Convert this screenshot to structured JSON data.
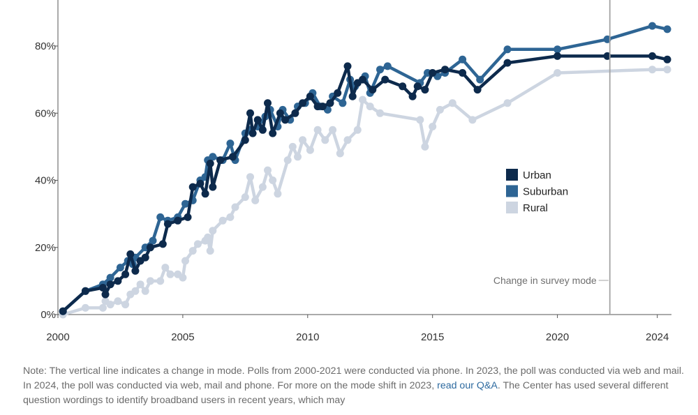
{
  "chart_data": {
    "type": "line",
    "title": "",
    "xlabel": "",
    "ylabel": "",
    "xlim": [
      2000,
      2024.4
    ],
    "ylim": [
      0,
      80
    ],
    "x_ticks": [
      2000,
      2005,
      2010,
      2015,
      2020,
      2024
    ],
    "y_ticks": [
      0,
      20,
      40,
      60,
      80
    ],
    "y_tick_labels": [
      "0%",
      "20%",
      "40%",
      "60%",
      "80%"
    ],
    "grid": false,
    "legend": "middle-right",
    "annotations": [
      {
        "text": "Change in survey mode",
        "x": 2022.1
      }
    ],
    "series": [
      {
        "name": "Urban",
        "color": "#0d2a4c",
        "points": [
          [
            2000.2,
            1
          ],
          [
            2001.1,
            7
          ],
          [
            2001.8,
            8
          ],
          [
            2001.9,
            6
          ],
          [
            2002.1,
            9
          ],
          [
            2002.4,
            10
          ],
          [
            2002.7,
            12
          ],
          [
            2002.9,
            18
          ],
          [
            2003.1,
            13
          ],
          [
            2003.3,
            16
          ],
          [
            2003.5,
            17
          ],
          [
            2003.7,
            20
          ],
          [
            2004.2,
            21
          ],
          [
            2004.4,
            27
          ],
          [
            2004.8,
            28
          ],
          [
            2005.2,
            29
          ],
          [
            2005.4,
            38
          ],
          [
            2005.7,
            39
          ],
          [
            2005.9,
            36
          ],
          [
            2006.1,
            45
          ],
          [
            2006.2,
            38
          ],
          [
            2006.5,
            46
          ],
          [
            2007.0,
            47
          ],
          [
            2007.5,
            52
          ],
          [
            2007.7,
            60
          ],
          [
            2007.8,
            54
          ],
          [
            2008.0,
            58
          ],
          [
            2008.2,
            55
          ],
          [
            2008.4,
            63
          ],
          [
            2008.6,
            54
          ],
          [
            2008.9,
            60
          ],
          [
            2009.1,
            58
          ],
          [
            2009.5,
            60
          ],
          [
            2009.8,
            63
          ],
          [
            2010.1,
            65
          ],
          [
            2010.4,
            62
          ],
          [
            2010.6,
            62
          ],
          [
            2010.9,
            63
          ],
          [
            2011.2,
            66
          ],
          [
            2011.6,
            74
          ],
          [
            2011.8,
            65
          ],
          [
            2012.0,
            69
          ],
          [
            2012.2,
            70
          ],
          [
            2012.6,
            67
          ],
          [
            2013.1,
            70
          ],
          [
            2013.8,
            68
          ],
          [
            2014.2,
            65
          ],
          [
            2014.4,
            68
          ],
          [
            2014.7,
            67
          ],
          [
            2015.0,
            72
          ],
          [
            2015.5,
            73
          ],
          [
            2016.2,
            72
          ],
          [
            2016.8,
            67
          ],
          [
            2018.0,
            75
          ],
          [
            2020.0,
            77
          ],
          [
            2022.0,
            77
          ],
          [
            2023.8,
            77
          ],
          [
            2024.4,
            76
          ]
        ]
      },
      {
        "name": "Suburban",
        "color": "#2e6594",
        "points": [
          [
            2000.2,
            1
          ],
          [
            2001.1,
            7
          ],
          [
            2001.8,
            9
          ],
          [
            2002.1,
            11
          ],
          [
            2002.5,
            14
          ],
          [
            2002.8,
            16
          ],
          [
            2003.0,
            15
          ],
          [
            2003.1,
            17
          ],
          [
            2003.5,
            20
          ],
          [
            2003.8,
            22
          ],
          [
            2004.1,
            29
          ],
          [
            2004.4,
            28
          ],
          [
            2004.8,
            29
          ],
          [
            2005.1,
            33
          ],
          [
            2005.4,
            34
          ],
          [
            2005.7,
            40
          ],
          [
            2005.9,
            41
          ],
          [
            2006.0,
            46
          ],
          [
            2006.2,
            47
          ],
          [
            2006.6,
            46
          ],
          [
            2006.9,
            51
          ],
          [
            2007.1,
            46
          ],
          [
            2007.5,
            54
          ],
          [
            2007.7,
            55
          ],
          [
            2008.0,
            56
          ],
          [
            2008.3,
            59
          ],
          [
            2008.5,
            61
          ],
          [
            2008.8,
            56
          ],
          [
            2009.0,
            61
          ],
          [
            2009.3,
            58
          ],
          [
            2009.6,
            62
          ],
          [
            2009.9,
            63
          ],
          [
            2010.2,
            66
          ],
          [
            2010.5,
            62
          ],
          [
            2010.8,
            61
          ],
          [
            2011.0,
            65
          ],
          [
            2011.4,
            63
          ],
          [
            2011.7,
            70
          ],
          [
            2011.9,
            68
          ],
          [
            2012.3,
            71
          ],
          [
            2012.5,
            66
          ],
          [
            2012.9,
            73
          ],
          [
            2013.2,
            74
          ],
          [
            2014.5,
            69
          ],
          [
            2014.8,
            72
          ],
          [
            2015.2,
            71
          ],
          [
            2015.5,
            72
          ],
          [
            2016.2,
            76
          ],
          [
            2016.9,
            70
          ],
          [
            2018.0,
            79
          ],
          [
            2020.0,
            79
          ],
          [
            2022.0,
            82
          ],
          [
            2023.8,
            86
          ],
          [
            2024.4,
            85
          ]
        ]
      },
      {
        "name": "Rural",
        "color": "#cdd5e1",
        "points": [
          [
            2000.2,
            0
          ],
          [
            2001.1,
            2
          ],
          [
            2001.8,
            2
          ],
          [
            2001.9,
            4
          ],
          [
            2002.1,
            3
          ],
          [
            2002.4,
            4
          ],
          [
            2002.7,
            3
          ],
          [
            2002.9,
            6
          ],
          [
            2003.1,
            7
          ],
          [
            2003.3,
            9
          ],
          [
            2003.5,
            7
          ],
          [
            2003.7,
            10
          ],
          [
            2004.1,
            10
          ],
          [
            2004.3,
            14
          ],
          [
            2004.5,
            12
          ],
          [
            2004.8,
            12
          ],
          [
            2005.0,
            11
          ],
          [
            2005.1,
            16
          ],
          [
            2005.4,
            19
          ],
          [
            2005.6,
            21
          ],
          [
            2005.9,
            22
          ],
          [
            2006.0,
            23
          ],
          [
            2006.1,
            19
          ],
          [
            2006.2,
            25
          ],
          [
            2006.6,
            28
          ],
          [
            2006.9,
            29
          ],
          [
            2007.1,
            32
          ],
          [
            2007.5,
            35
          ],
          [
            2007.7,
            41
          ],
          [
            2007.9,
            34
          ],
          [
            2008.2,
            38
          ],
          [
            2008.4,
            43
          ],
          [
            2008.6,
            40
          ],
          [
            2008.8,
            36
          ],
          [
            2009.2,
            46
          ],
          [
            2009.4,
            50
          ],
          [
            2009.6,
            47
          ],
          [
            2009.8,
            52
          ],
          [
            2010.1,
            49
          ],
          [
            2010.4,
            55
          ],
          [
            2010.7,
            52
          ],
          [
            2011.0,
            55
          ],
          [
            2011.3,
            48
          ],
          [
            2011.6,
            52
          ],
          [
            2012.0,
            55
          ],
          [
            2012.2,
            64
          ],
          [
            2012.5,
            62
          ],
          [
            2012.9,
            60
          ],
          [
            2014.5,
            58
          ],
          [
            2014.7,
            50
          ],
          [
            2015.0,
            56
          ],
          [
            2015.3,
            61
          ],
          [
            2015.8,
            63
          ],
          [
            2016.6,
            58
          ],
          [
            2018.0,
            63
          ],
          [
            2020.0,
            72
          ],
          [
            2023.8,
            73
          ],
          [
            2024.4,
            73
          ]
        ]
      }
    ]
  },
  "note": {
    "text_before_link": "Note: The vertical line indicates a change in mode. Polls from 2000-2021 were conducted via phone. In 2023, the poll was conducted via web and mail. In 2024, the poll was conducted via web, mail and phone. For more on the mode shift in 2023, ",
    "link_text": "read our Q&A",
    "text_after_link": ". The Center has used several different question wordings to identify broadband users in recent years, which may"
  }
}
